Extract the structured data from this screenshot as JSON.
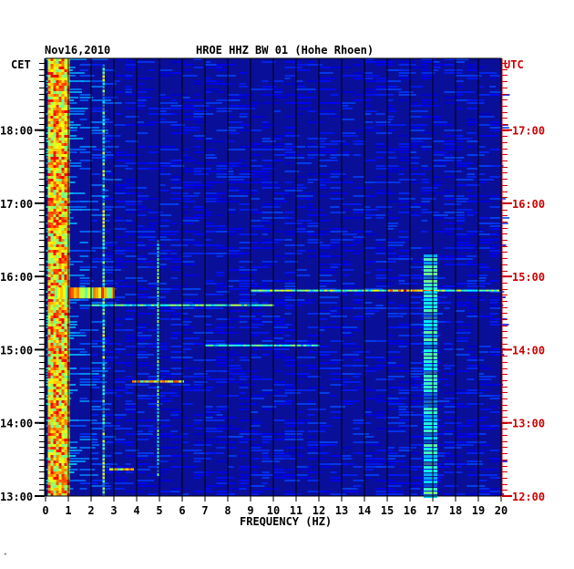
{
  "header": {
    "date": "Nov16,2010",
    "station": "HROE HHZ BW 01 (Hohe Rhoen)",
    "left_zone": "CET",
    "right_zone": "UTC"
  },
  "footer_mark": "ᴹ",
  "colors": {
    "background": "#0a0f9a",
    "utc_text": "#cc0000",
    "axis_text": "#000000",
    "gridline": "#000000"
  },
  "chart_data": {
    "type": "heatmap",
    "title": "HROE HHZ BW 01 (Hohe Rhoen)",
    "xlabel": "FREQUENCY (HZ)",
    "xlim": [
      0,
      20
    ],
    "x_ticks": [
      "0",
      "1",
      "2",
      "3",
      "4",
      "5",
      "6",
      "7",
      "8",
      "9",
      "10",
      "11",
      "12",
      "13",
      "14",
      "15",
      "16",
      "17",
      "18",
      "19",
      "20"
    ],
    "y_left_label": "CET",
    "y_right_label": "UTC",
    "y_left_ticks": [
      "13:00",
      "14:00",
      "15:00",
      "16:00",
      "17:00",
      "18:00"
    ],
    "y_right_ticks": [
      "12:00",
      "13:00",
      "14:00",
      "15:00",
      "16:00",
      "17:00"
    ],
    "time_range_cet_hours": [
      13.0,
      18.98
    ],
    "grid": true,
    "colormap": "jet",
    "features": [
      {
        "desc": "strong low-frequency band",
        "freq": [
          0.1,
          1.0
        ],
        "time_cet": [
          13.0,
          18.98
        ],
        "level": 0.85
      },
      {
        "desc": "narrow line",
        "freq": [
          2.5,
          2.6
        ],
        "time_cet": [
          13.0,
          18.9
        ],
        "level": 0.55
      },
      {
        "desc": "burst",
        "freq": [
          0.4,
          3.0
        ],
        "time_cet": [
          15.7,
          15.85
        ],
        "level": 0.8
      },
      {
        "desc": "horizontal line",
        "freq": [
          9.0,
          19.9
        ],
        "time_cet": [
          15.8,
          15.82
        ],
        "level": 0.6
      },
      {
        "desc": "hot spot",
        "freq": [
          15.0,
          17.0
        ],
        "time_cet": [
          15.8,
          15.82
        ],
        "level": 0.95
      },
      {
        "desc": "horizontal line",
        "freq": [
          7.0,
          12.0
        ],
        "time_cet": [
          15.05,
          15.07
        ],
        "level": 0.5
      },
      {
        "desc": "burst",
        "freq": [
          3.8,
          6.0
        ],
        "time_cet": [
          14.55,
          14.58
        ],
        "level": 0.8
      },
      {
        "desc": "narrow line",
        "freq": [
          16.6,
          17.2
        ],
        "time_cet": [
          13.0,
          16.3
        ],
        "level": 0.45
      },
      {
        "desc": "narrow line",
        "freq": [
          4.9,
          5.0
        ],
        "time_cet": [
          13.3,
          16.5
        ],
        "level": 0.5
      },
      {
        "desc": "burst",
        "freq": [
          2.8,
          3.8
        ],
        "time_cet": [
          13.35,
          13.38
        ],
        "level": 0.75
      },
      {
        "desc": "horizontal line",
        "freq": [
          2.0,
          10.0
        ],
        "time_cet": [
          15.6,
          15.62
        ],
        "level": 0.55
      }
    ]
  }
}
